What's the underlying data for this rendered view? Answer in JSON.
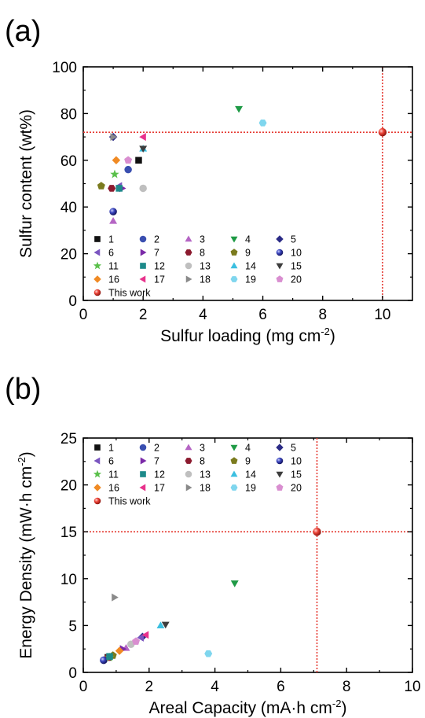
{
  "chart_data": [
    {
      "type": "scatter",
      "panel_label": "(a)",
      "title": "",
      "xlabel": "Sulfur loading (mg cm",
      "xlabel_sup": "-2",
      "xlabel_end": ")",
      "ylabel": "Sulfur content (wt%)",
      "xlim": [
        0,
        11
      ],
      "ylim": [
        0,
        100
      ],
      "xticks": [
        0,
        2,
        4,
        6,
        8,
        10
      ],
      "yticks": [
        0,
        20,
        40,
        60,
        80,
        100
      ],
      "grid": false,
      "legend_position": "bottom-left",
      "reference_lines": {
        "x": 10,
        "y": 72,
        "color": "#e53a32",
        "style": "dotted"
      },
      "series": [
        {
          "name": "1",
          "marker": "square",
          "color": "#111111",
          "points": [
            [
              1.85,
              60
            ]
          ]
        },
        {
          "name": "2",
          "marker": "circle",
          "color": "#3a4fb0",
          "points": [
            [
              1.5,
              56
            ]
          ]
        },
        {
          "name": "3",
          "marker": "triangle-up",
          "color": "#b565c4",
          "points": [
            [
              1.0,
              34
            ]
          ]
        },
        {
          "name": "4",
          "marker": "triangle-down",
          "color": "#1e9a45",
          "points": [
            [
              5.2,
              82
            ]
          ]
        },
        {
          "name": "5",
          "marker": "diamond",
          "color": "#2b2b86",
          "points": [
            [
              1.0,
              70
            ]
          ]
        },
        {
          "name": "6",
          "marker": "triangle-left",
          "color": "#7a55c0",
          "points": [
            [
              1.2,
              49
            ]
          ]
        },
        {
          "name": "7",
          "marker": "triangle-right",
          "color": "#7b2aa8",
          "points": [
            [
              1.3,
              48
            ]
          ]
        },
        {
          "name": "8",
          "marker": "hexagon",
          "color": "#8b1a2e",
          "points": [
            [
              0.95,
              48
            ]
          ]
        },
        {
          "name": "9",
          "marker": "pentagon",
          "color": "#7b7b1e",
          "points": [
            [
              0.6,
              49
            ]
          ]
        },
        {
          "name": "10",
          "marker": "sphere",
          "color": "#2c2c9a",
          "points": [
            [
              1.0,
              38
            ]
          ]
        },
        {
          "name": "11",
          "marker": "star",
          "color": "#5ac04a",
          "points": [
            [
              1.05,
              54
            ]
          ]
        },
        {
          "name": "12",
          "marker": "square",
          "color": "#1d8a8a",
          "points": [
            [
              1.2,
              48
            ]
          ]
        },
        {
          "name": "13",
          "marker": "circle",
          "color": "#bfbfbf",
          "points": [
            [
              2.0,
              48
            ]
          ]
        },
        {
          "name": "14",
          "marker": "triangle-up",
          "color": "#3bbfe0",
          "points": [
            [
              2.0,
              65
            ]
          ]
        },
        {
          "name": "15",
          "marker": "triangle-down",
          "color": "#3d3d3d",
          "points": [
            [
              2.0,
              65
            ]
          ]
        },
        {
          "name": "16",
          "marker": "diamond",
          "color": "#f08a24",
          "points": [
            [
              1.1,
              60
            ]
          ]
        },
        {
          "name": "17",
          "marker": "triangle-left",
          "color": "#e8328c",
          "points": [
            [
              2.0,
              70
            ]
          ]
        },
        {
          "name": "18",
          "marker": "triangle-right",
          "color": "#8a8a8a",
          "points": [
            [
              1.0,
              70
            ]
          ]
        },
        {
          "name": "19",
          "marker": "hexagon",
          "color": "#7fd6ee",
          "points": [
            [
              6.0,
              76
            ]
          ]
        },
        {
          "name": "20",
          "marker": "pentagon",
          "color": "#d98ed0",
          "points": [
            [
              1.5,
              60
            ]
          ]
        },
        {
          "name": "This work",
          "marker": "sphere",
          "color": "#e53a32",
          "points": [
            [
              10.0,
              72
            ]
          ]
        }
      ]
    },
    {
      "type": "scatter",
      "panel_label": "(b)",
      "title": "",
      "xlabel": "Areal Capacity (mA·h cm",
      "xlabel_sup": "-2",
      "xlabel_end": ")",
      "ylabel": "Energy Density (mW·h cm",
      "ylabel_sup": "-2",
      "ylabel_end": ")",
      "xlim": [
        0,
        10
      ],
      "ylim": [
        0,
        25
      ],
      "xticks": [
        0,
        2,
        4,
        6,
        8,
        10
      ],
      "yticks": [
        0,
        5,
        10,
        15,
        20,
        25
      ],
      "grid": false,
      "legend_position": "top-left",
      "reference_lines": {
        "x": 7.1,
        "y": 15,
        "color": "#e53a32",
        "style": "dotted"
      },
      "series": [
        {
          "name": "1",
          "marker": "square",
          "color": "#111111",
          "points": [
            [
              0.75,
              1.6
            ]
          ]
        },
        {
          "name": "2",
          "marker": "circle",
          "color": "#3a4fb0",
          "points": [
            [
              0.62,
              1.3
            ]
          ]
        },
        {
          "name": "3",
          "marker": "triangle-up",
          "color": "#b565c4",
          "points": [
            [
              1.3,
              2.6
            ]
          ]
        },
        {
          "name": "4",
          "marker": "triangle-down",
          "color": "#1e9a45",
          "points": [
            [
              4.6,
              9.5
            ]
          ]
        },
        {
          "name": "5",
          "marker": "diamond",
          "color": "#2b2b86",
          "points": [
            [
              1.8,
              3.8
            ]
          ]
        },
        {
          "name": "6",
          "marker": "triangle-left",
          "color": "#7a55c0",
          "points": [
            [
              1.75,
              3.7
            ]
          ]
        },
        {
          "name": "7",
          "marker": "triangle-right",
          "color": "#7b2aa8",
          "points": [
            [
              1.2,
              2.5
            ]
          ]
        },
        {
          "name": "8",
          "marker": "hexagon",
          "color": "#8b1a2e",
          "points": [
            [
              0.75,
              1.6
            ]
          ]
        },
        {
          "name": "9",
          "marker": "pentagon",
          "color": "#7b7b1e",
          "points": [
            [
              0.9,
              1.8
            ]
          ]
        },
        {
          "name": "10",
          "marker": "sphere",
          "color": "#2c2c9a",
          "points": [
            [
              0.62,
              1.3
            ]
          ]
        },
        {
          "name": "11",
          "marker": "star",
          "color": "#5ac04a",
          "points": [
            [
              0.8,
              1.6
            ]
          ]
        },
        {
          "name": "12",
          "marker": "square",
          "color": "#1d8a8a",
          "points": [
            [
              0.8,
              1.7
            ]
          ]
        },
        {
          "name": "13",
          "marker": "circle",
          "color": "#bfbfbf",
          "points": [
            [
              1.45,
              3.0
            ]
          ]
        },
        {
          "name": "14",
          "marker": "triangle-up",
          "color": "#3bbfe0",
          "points": [
            [
              2.35,
              5.0
            ]
          ]
        },
        {
          "name": "15",
          "marker": "triangle-down",
          "color": "#3d3d3d",
          "points": [
            [
              2.5,
              5.1
            ]
          ]
        },
        {
          "name": "16",
          "marker": "diamond",
          "color": "#f08a24",
          "points": [
            [
              1.1,
              2.3
            ]
          ]
        },
        {
          "name": "17",
          "marker": "triangle-left",
          "color": "#e8328c",
          "points": [
            [
              1.9,
              4.0
            ]
          ]
        },
        {
          "name": "18",
          "marker": "triangle-right",
          "color": "#8a8a8a",
          "points": [
            [
              0.95,
              8.0
            ]
          ]
        },
        {
          "name": "19",
          "marker": "hexagon",
          "color": "#7fd6ee",
          "points": [
            [
              3.8,
              2.0
            ]
          ]
        },
        {
          "name": "20",
          "marker": "pentagon",
          "color": "#d98ed0",
          "points": [
            [
              1.6,
              3.3
            ]
          ]
        },
        {
          "name": "This work",
          "marker": "sphere",
          "color": "#e53a32",
          "points": [
            [
              7.1,
              15.0
            ]
          ]
        }
      ]
    }
  ]
}
